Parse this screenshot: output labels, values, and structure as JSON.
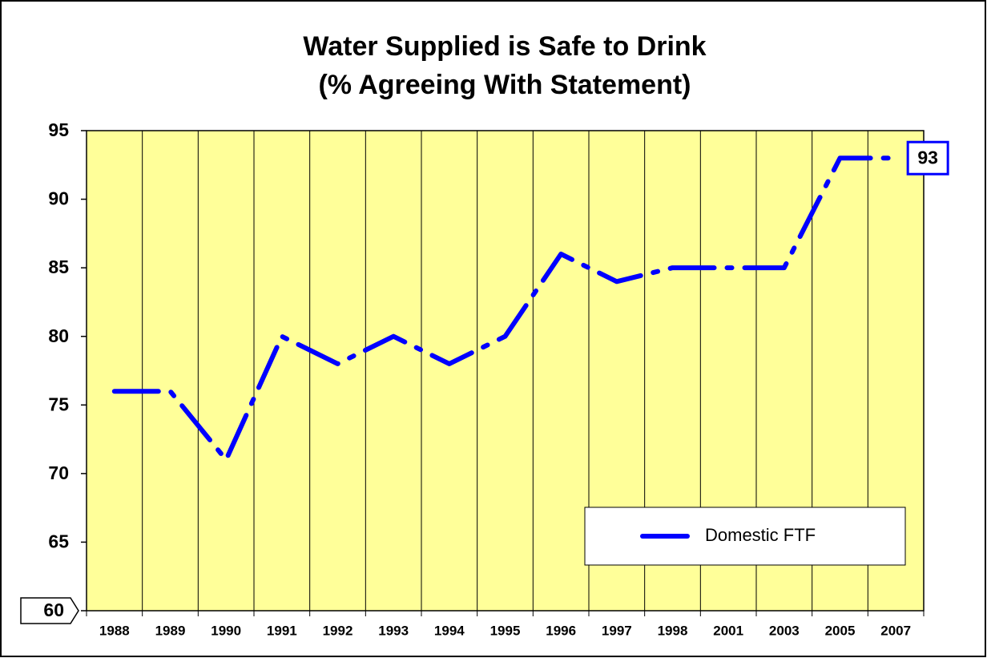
{
  "chart_data": {
    "type": "line",
    "title": "Water Supplied is Safe to Drink",
    "subtitle": "(% Agreeing With Statement)",
    "categories": [
      "1988",
      "1989",
      "1990",
      "1991",
      "1992",
      "1993",
      "1994",
      "1995",
      "1996",
      "1997",
      "1998",
      "2001",
      "2003",
      "2005",
      "2007"
    ],
    "series": [
      {
        "name": "Domestic FTF",
        "color": "#0000ff",
        "values": [
          76,
          76,
          71,
          80,
          78,
          80,
          78,
          80,
          86,
          84,
          85,
          85,
          85,
          93,
          93
        ]
      }
    ],
    "ylim": [
      60,
      95
    ],
    "yticks": [
      60,
      65,
      70,
      75,
      80,
      85,
      90,
      95
    ],
    "plot_background": "#ffff99",
    "grid": "vertical",
    "legend": "lower right"
  }
}
